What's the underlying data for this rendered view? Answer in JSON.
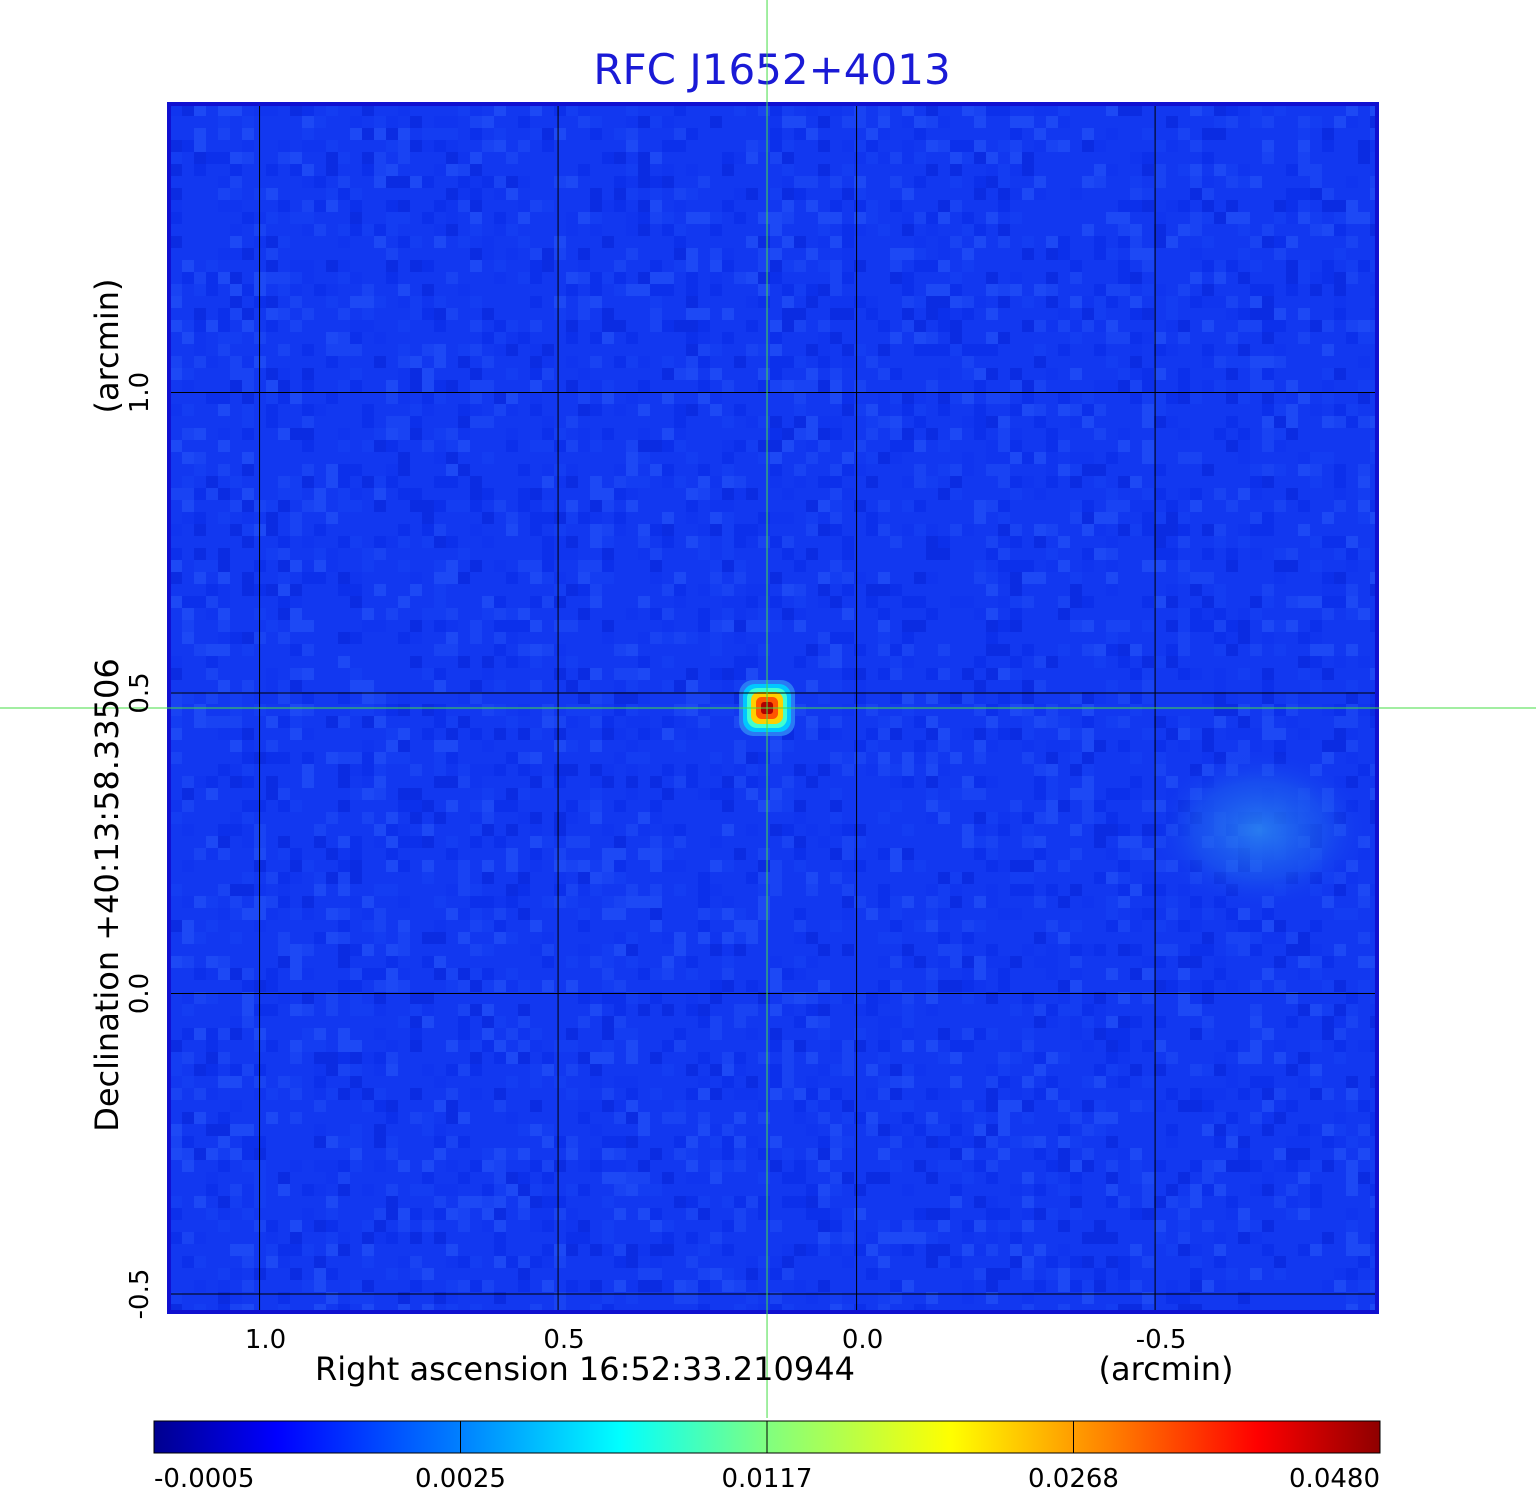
{
  "chart_data": {
    "type": "heatmap",
    "title": "RFC J1652+4013",
    "xlabel": "Right ascension  16:52:33.210944",
    "xunit": "(arcmin)",
    "ylabel": "Declination  +40:13:58.33506",
    "yunit": "(arcmin)",
    "x_ticks": [
      1.0,
      0.5,
      0.0,
      -0.5
    ],
    "x_tick_labels": [
      "1.0",
      "0.5",
      "0.0",
      "-0.5"
    ],
    "y_ticks": [
      1.0,
      0.5,
      0.0,
      -0.5
    ],
    "y_tick_labels": [
      "1.0",
      "0.5",
      "0.0",
      "-0.5"
    ],
    "xlim": [
      1.15,
      -0.87
    ],
    "ylim": [
      -0.53,
      1.48
    ],
    "grid": true,
    "crosshair": {
      "x": 0.15,
      "y": 0.475
    },
    "peak_source": {
      "x": 0.15,
      "y": 0.475,
      "value": 0.048
    },
    "diffuse_source": {
      "x": -0.68,
      "y": 0.29
    },
    "colorbar": {
      "ticks": [
        -0.0005,
        0.0025,
        0.0117,
        0.0268,
        0.048
      ],
      "tick_labels": [
        "-0.0005",
        "0.0025",
        "0.0117",
        "0.0268",
        "0.0480"
      ],
      "colormap": "jet"
    },
    "colors": {
      "title": "#1a1ad6",
      "background_map": "#1238f0",
      "frame": "#1010d0",
      "crosshair": "#44dd44",
      "grid": "#000000"
    }
  }
}
